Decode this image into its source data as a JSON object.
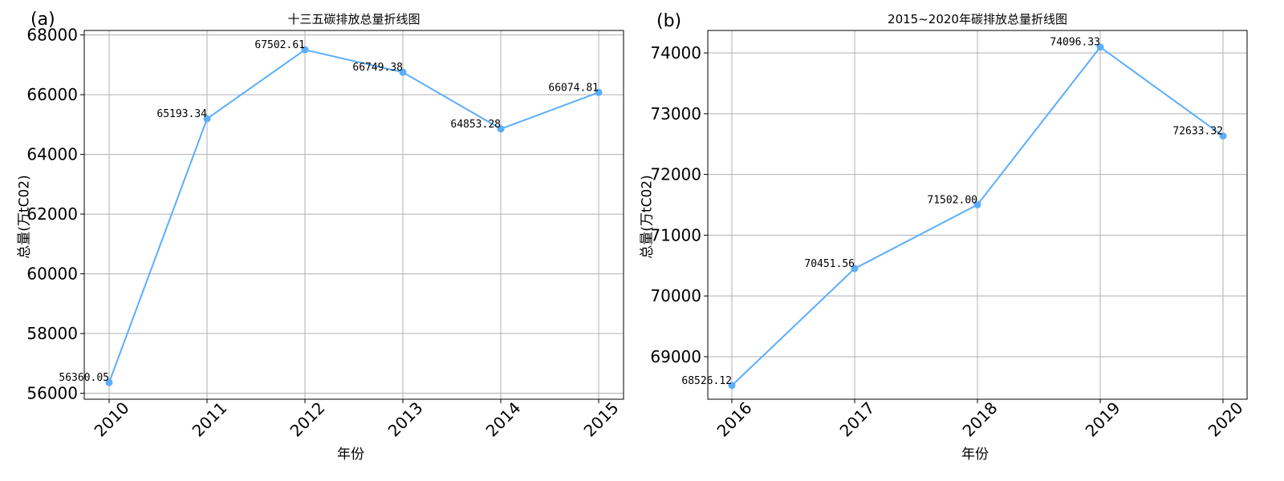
{
  "chart_data": [
    {
      "type": "line",
      "panel_label": "(a)",
      "title": "十三五碳排放总量折线图",
      "xlabel": "年份",
      "ylabel": "总量(万tC02)",
      "categories": [
        "2010",
        "2011",
        "2012",
        "2013",
        "2014",
        "2015"
      ],
      "series": [
        {
          "values": [
            56360.05,
            65193.34,
            67502.61,
            66749.38,
            64853.28,
            66074.81
          ]
        }
      ],
      "data_labels": [
        "56360.05",
        "65193.34",
        "67502.61",
        "66749.38",
        "64853.28",
        "66074.81"
      ],
      "yticks": [
        "56000",
        "58000",
        "60000",
        "62000",
        "64000",
        "66000",
        "68000"
      ],
      "ylim": [
        55800,
        68150
      ],
      "grid": true,
      "color": "#5aaefc"
    },
    {
      "type": "line",
      "panel_label": "(b)",
      "title": "2015~2020年碳排放总量折线图",
      "xlabel": "年份",
      "ylabel": "总量(万tC02)",
      "categories": [
        "2016",
        "2017",
        "2018",
        "2019",
        "2020"
      ],
      "series": [
        {
          "values": [
            68526.12,
            70451.56,
            71502.0,
            74096.33,
            72633.32
          ]
        }
      ],
      "data_labels": [
        "68526.12",
        "70451.56",
        "71502.00",
        "74096.33",
        "72633.32"
      ],
      "yticks": [
        "69000",
        "70000",
        "71000",
        "72000",
        "73000",
        "74000"
      ],
      "ylim": [
        68300,
        74370
      ],
      "grid": true,
      "color": "#5aaefc"
    }
  ]
}
